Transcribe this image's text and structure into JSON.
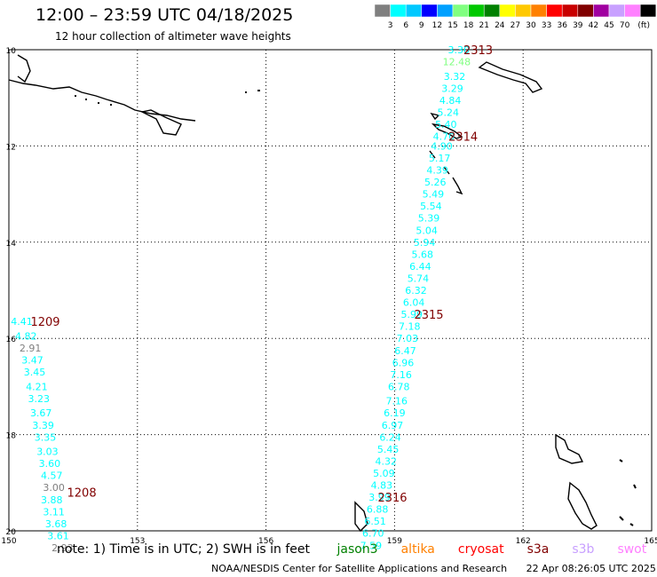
{
  "header": {
    "title": "12:00 – 23:59 UTC 04/18/2025",
    "subtitle": "12 hour collection of altimeter wave heights"
  },
  "legend": {
    "unit": "(ft)",
    "ticks": [
      "3",
      "6",
      "9",
      "12",
      "15",
      "18",
      "21",
      "24",
      "27",
      "30",
      "33",
      "36",
      "39",
      "42",
      "45",
      "70"
    ],
    "colors": [
      "#7f7f7f",
      "#00ffff",
      "#00c8ff",
      "#0000ff",
      "#00a0ff",
      "#80ff80",
      "#00c800",
      "#008000",
      "#ffff00",
      "#ffc800",
      "#ff8000",
      "#ff0000",
      "#c80000",
      "#800000",
      "#a000a0",
      "#c8a0ff",
      "#ff80ff",
      "#000000"
    ]
  },
  "map": {
    "lat_ticks": [
      "10",
      "12",
      "14",
      "16",
      "18",
      "20"
    ],
    "lon_ticks": [
      "150",
      "153",
      "156",
      "159",
      "162",
      "165"
    ],
    "lat_range": [
      10,
      20
    ],
    "lon_range": [
      150,
      165
    ]
  },
  "tracks": [
    {
      "id": "2313",
      "label_lat": 10.0,
      "label_lon": 160.95,
      "label_color": "#800000",
      "points": [
        {
          "v": "3.30",
          "lat": 10.0,
          "lon": 160.5,
          "color": "#00ffff"
        },
        {
          "v": "12.48",
          "lat": 10.25,
          "lon": 160.45,
          "color": "#80ff80"
        },
        {
          "v": "3.32",
          "lat": 10.55,
          "lon": 160.4,
          "color": "#00ffff"
        },
        {
          "v": "3.29",
          "lat": 10.8,
          "lon": 160.35,
          "color": "#00ffff"
        },
        {
          "v": "4.84",
          "lat": 11.05,
          "lon": 160.3,
          "color": "#00ffff"
        },
        {
          "v": "5.24",
          "lat": 11.3,
          "lon": 160.25,
          "color": "#00ffff"
        },
        {
          "v": "5.40",
          "lat": 11.55,
          "lon": 160.2,
          "color": "#00ffff"
        },
        {
          "v": "4.70",
          "lat": 11.8,
          "lon": 160.15,
          "color": "#00ffff"
        }
      ]
    },
    {
      "id": "2314",
      "label_lat": 11.8,
      "label_lon": 160.6,
      "label_color": "#800000",
      "points": [
        {
          "v": "4.90",
          "lat": 12.0,
          "lon": 160.1,
          "color": "#00ffff"
        },
        {
          "v": "5.17",
          "lat": 12.25,
          "lon": 160.05,
          "color": "#00ffff"
        },
        {
          "v": "4.39",
          "lat": 12.5,
          "lon": 160.0,
          "color": "#00ffff"
        },
        {
          "v": "5.26",
          "lat": 12.75,
          "lon": 159.95,
          "color": "#00ffff"
        },
        {
          "v": "5.49",
          "lat": 13.0,
          "lon": 159.9,
          "color": "#00ffff"
        },
        {
          "v": "5.54",
          "lat": 13.25,
          "lon": 159.85,
          "color": "#00ffff"
        },
        {
          "v": "5.39",
          "lat": 13.5,
          "lon": 159.8,
          "color": "#00ffff"
        },
        {
          "v": "5.04",
          "lat": 13.75,
          "lon": 159.75,
          "color": "#00ffff"
        },
        {
          "v": "5.94",
          "lat": 14.0,
          "lon": 159.7,
          "color": "#00ffff"
        },
        {
          "v": "5.68",
          "lat": 14.25,
          "lon": 159.65,
          "color": "#00ffff"
        },
        {
          "v": "6.44",
          "lat": 14.5,
          "lon": 159.6,
          "color": "#00ffff"
        },
        {
          "v": "5.74",
          "lat": 14.75,
          "lon": 159.55,
          "color": "#00ffff"
        },
        {
          "v": "6.32",
          "lat": 15.0,
          "lon": 159.5,
          "color": "#00ffff"
        },
        {
          "v": "6.04",
          "lat": 15.25,
          "lon": 159.45,
          "color": "#00ffff"
        },
        {
          "v": "5.99",
          "lat": 15.5,
          "lon": 159.4,
          "color": "#00ffff"
        }
      ]
    },
    {
      "id": "2315",
      "label_lat": 15.5,
      "label_lon": 159.8,
      "label_color": "#800000",
      "points": [
        {
          "v": "7.18",
          "lat": 15.75,
          "lon": 159.35,
          "color": "#00ffff"
        },
        {
          "v": "7.03",
          "lat": 16.0,
          "lon": 159.3,
          "color": "#00ffff"
        },
        {
          "v": "6.47",
          "lat": 16.25,
          "lon": 159.25,
          "color": "#00ffff"
        },
        {
          "v": "6.96",
          "lat": 16.5,
          "lon": 159.2,
          "color": "#00ffff"
        },
        {
          "v": "7.16",
          "lat": 16.75,
          "lon": 159.15,
          "color": "#00ffff"
        },
        {
          "v": "6.78",
          "lat": 17.0,
          "lon": 159.1,
          "color": "#00ffff"
        },
        {
          "v": "7.16",
          "lat": 17.3,
          "lon": 159.05,
          "color": "#00ffff"
        },
        {
          "v": "6.19",
          "lat": 17.55,
          "lon": 159.0,
          "color": "#00ffff"
        },
        {
          "v": "6.97",
          "lat": 17.8,
          "lon": 158.95,
          "color": "#00ffff"
        },
        {
          "v": "6.24",
          "lat": 18.05,
          "lon": 158.9,
          "color": "#00ffff"
        },
        {
          "v": "5.45",
          "lat": 18.3,
          "lon": 158.85,
          "color": "#00ffff"
        },
        {
          "v": "4.32",
          "lat": 18.55,
          "lon": 158.8,
          "color": "#00ffff"
        },
        {
          "v": "5.09",
          "lat": 18.8,
          "lon": 158.75,
          "color": "#00ffff"
        },
        {
          "v": "4.83",
          "lat": 19.05,
          "lon": 158.7,
          "color": "#00ffff"
        },
        {
          "v": "3.99",
          "lat": 19.3,
          "lon": 158.65,
          "color": "#00ffff"
        }
      ]
    },
    {
      "id": "2316",
      "label_lat": 19.3,
      "label_lon": 158.95,
      "label_color": "#800000",
      "points": [
        {
          "v": "6.88",
          "lat": 19.55,
          "lon": 158.6,
          "color": "#00ffff"
        },
        {
          "v": "6.51",
          "lat": 19.8,
          "lon": 158.55,
          "color": "#00ffff"
        },
        {
          "v": "6.70",
          "lat": 20.05,
          "lon": 158.5,
          "color": "#00ffff"
        },
        {
          "v": "7.59",
          "lat": 20.3,
          "lon": 158.45,
          "color": "#00ffff"
        }
      ]
    },
    {
      "id": "1209",
      "label_lat": 15.65,
      "label_lon": 150.85,
      "label_color": "#800000",
      "points": [
        {
          "v": "4.41",
          "lat": 15.65,
          "lon": 150.3,
          "color": "#00ffff"
        },
        {
          "v": "4.82",
          "lat": 15.95,
          "lon": 150.4,
          "color": "#00ffff"
        },
        {
          "v": "2.91",
          "lat": 16.2,
          "lon": 150.5,
          "color": "#7f7f7f"
        },
        {
          "v": "3.47",
          "lat": 16.45,
          "lon": 150.55,
          "color": "#00ffff"
        },
        {
          "v": "3.45",
          "lat": 16.7,
          "lon": 150.6,
          "color": "#00ffff"
        },
        {
          "v": "4.21",
          "lat": 17.0,
          "lon": 150.65,
          "color": "#00ffff"
        },
        {
          "v": "3.23",
          "lat": 17.25,
          "lon": 150.7,
          "color": "#00ffff"
        },
        {
          "v": "3.67",
          "lat": 17.55,
          "lon": 150.75,
          "color": "#00ffff"
        },
        {
          "v": "3.39",
          "lat": 17.8,
          "lon": 150.8,
          "color": "#00ffff"
        },
        {
          "v": "3.35",
          "lat": 18.05,
          "lon": 150.85,
          "color": "#00ffff"
        },
        {
          "v": "3.03",
          "lat": 18.35,
          "lon": 150.9,
          "color": "#00ffff"
        },
        {
          "v": "3.60",
          "lat": 18.6,
          "lon": 150.95,
          "color": "#00ffff"
        },
        {
          "v": "4.57",
          "lat": 18.85,
          "lon": 151.0,
          "color": "#00ffff"
        }
      ]
    },
    {
      "id": "1208",
      "label_lat": 19.2,
      "label_lon": 151.7,
      "label_color": "#800000",
      "points": [
        {
          "v": "3.00",
          "lat": 19.1,
          "lon": 151.05,
          "color": "#7f7f7f"
        },
        {
          "v": "3.88",
          "lat": 19.35,
          "lon": 151.0,
          "color": "#00ffff"
        },
        {
          "v": "3.11",
          "lat": 19.6,
          "lon": 151.05,
          "color": "#00ffff"
        },
        {
          "v": "3.68",
          "lat": 19.85,
          "lon": 151.1,
          "color": "#00ffff"
        },
        {
          "v": "3.61",
          "lat": 20.1,
          "lon": 151.15,
          "color": "#00ffff"
        },
        {
          "v": "2.93",
          "lat": 20.35,
          "lon": 151.25,
          "color": "#7f7f7f"
        }
      ]
    }
  ],
  "footer": {
    "note": "note:  1) Time is in UTC;  2) SWH is in feet",
    "satellites": [
      {
        "name": "jason3",
        "color": "#008000"
      },
      {
        "name": "altika",
        "color": "#ff8000"
      },
      {
        "name": "cryosat",
        "color": "#ff0000"
      },
      {
        "name": "s3a",
        "color": "#800000"
      },
      {
        "name": "s3b",
        "color": "#c8a0ff"
      },
      {
        "name": "swot",
        "color": "#ff80ff"
      }
    ],
    "credit": "NOAA/NESDIS Center for Satellite Applications and Research",
    "timestamp": "22 Apr 08:26:05 UTC 2025"
  }
}
